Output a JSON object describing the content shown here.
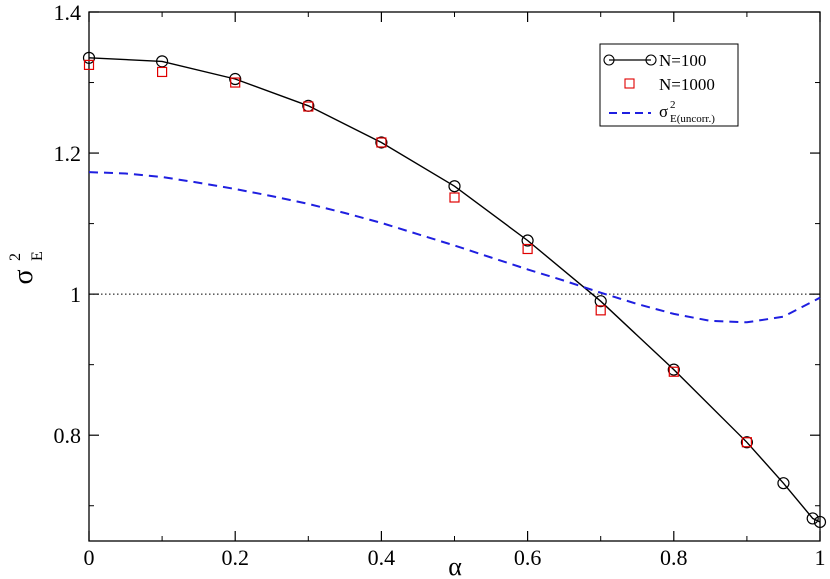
{
  "chart_data": {
    "type": "line",
    "xlabel": "α",
    "ylabel": {
      "main": "σ",
      "sup": "2",
      "sub": "E"
    },
    "xlim": [
      0,
      1
    ],
    "ylim": [
      0.65,
      1.4
    ],
    "xticks": [
      "0",
      "0.2",
      "0.4",
      "0.6",
      "0.8",
      "1"
    ],
    "yticks": [
      "0.8",
      "1",
      "1.2",
      "1.4"
    ],
    "grid": false,
    "legend_position": "top-right",
    "reference_line": {
      "y": 1,
      "style": "dotted"
    },
    "series": [
      {
        "name": "N=100",
        "color": "#000000",
        "marker": "circle",
        "line": "solid",
        "x": [
          0,
          0.1,
          0.2,
          0.3,
          0.4,
          0.5,
          0.6,
          0.7,
          0.8,
          0.9,
          0.95,
          0.99,
          1.0
        ],
        "y": [
          1.335,
          1.33,
          1.305,
          1.267,
          1.215,
          1.153,
          1.076,
          0.99,
          0.893,
          0.79,
          0.732,
          0.682,
          0.677
        ]
      },
      {
        "name": "N=1000",
        "color": "#e00000",
        "marker": "square",
        "line": "none",
        "x": [
          0,
          0.1,
          0.2,
          0.3,
          0.4,
          0.5,
          0.6,
          0.7,
          0.8,
          0.9
        ],
        "y": [
          1.325,
          1.315,
          1.3,
          1.266,
          1.215,
          1.137,
          1.064,
          0.977,
          0.89,
          0.79
        ]
      },
      {
        "name": {
          "main": "σ",
          "sup": "2",
          "sub": "E(uncorr.)"
        },
        "color": "#1f1fe0",
        "marker": "none",
        "line": "dashed",
        "x": [
          0,
          0.05,
          0.1,
          0.15,
          0.2,
          0.25,
          0.3,
          0.35,
          0.4,
          0.45,
          0.5,
          0.55,
          0.6,
          0.65,
          0.7,
          0.75,
          0.8,
          0.85,
          0.9,
          0.95,
          1.0
        ],
        "y": [
          1.173,
          1.171,
          1.166,
          1.158,
          1.149,
          1.139,
          1.128,
          1.115,
          1.101,
          1.085,
          1.069,
          1.052,
          1.035,
          1.019,
          1.002,
          0.986,
          0.972,
          0.962,
          0.96,
          0.968,
          0.995
        ]
      }
    ]
  }
}
